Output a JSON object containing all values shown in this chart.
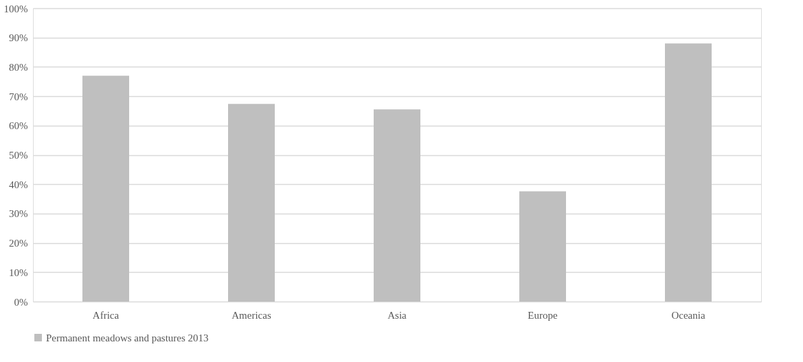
{
  "chart_data": {
    "type": "bar",
    "categories": [
      "Africa",
      "Americas",
      "Asia",
      "Europe",
      "Oceania"
    ],
    "series": [
      {
        "name": "Permanent meadows and pastures 2013",
        "color": "#bfbfbf",
        "values": [
          77.0,
          67.4,
          65.5,
          37.6,
          88.0
        ]
      }
    ],
    "ylim": [
      0,
      100
    ],
    "yticks": [
      {
        "value": 0,
        "label": "0%"
      },
      {
        "value": 10,
        "label": "10%"
      },
      {
        "value": 20,
        "label": "20%"
      },
      {
        "value": 30,
        "label": "30%"
      },
      {
        "value": 40,
        "label": "40%"
      },
      {
        "value": 50,
        "label": "50%"
      },
      {
        "value": 60,
        "label": "60%"
      },
      {
        "value": 70,
        "label": "70%"
      },
      {
        "value": 80,
        "label": "80%"
      },
      {
        "value": 90,
        "label": "90%"
      },
      {
        "value": 100,
        "label": "100%"
      }
    ],
    "grid": "y",
    "legend": "bottom"
  }
}
